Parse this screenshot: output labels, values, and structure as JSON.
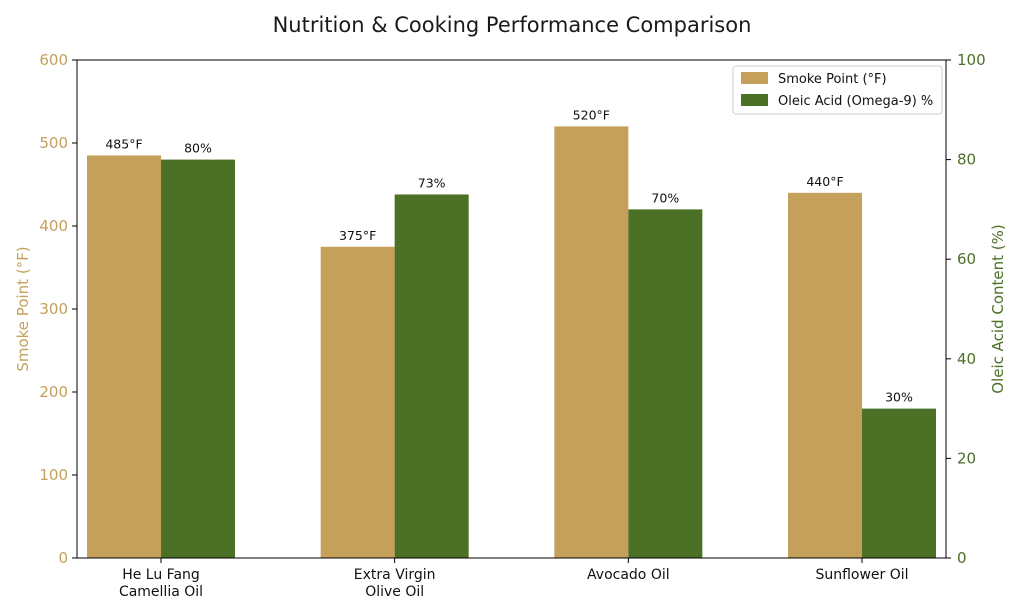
{
  "chart_data": {
    "type": "bar",
    "title": "Nutrition & Cooking Performance Comparison",
    "categories": [
      "He Lu Fang\nCamellia Oil",
      "Extra Virgin\nOlive Oil",
      "Avocado Oil",
      "Sunflower Oil"
    ],
    "series": [
      {
        "name": "Smoke Point (°F)",
        "values": [
          485,
          375,
          520,
          440
        ],
        "labels": [
          "485°F",
          "375°F",
          "520°F",
          "440°F"
        ],
        "axis": "left",
        "color": "#c5a05a"
      },
      {
        "name": "Oleic Acid (Omega-9) %",
        "values": [
          80,
          73,
          70,
          30
        ],
        "labels": [
          "80%",
          "73%",
          "70%",
          "30%"
        ],
        "axis": "right",
        "color": "#4b7026"
      }
    ],
    "y_left": {
      "label": "Smoke Point (°F)",
      "lim": [
        0,
        600
      ],
      "ticks": [
        0,
        100,
        200,
        300,
        400,
        500,
        600
      ],
      "color": "#c5a05a"
    },
    "y_right": {
      "label": "Oleic Acid Content (%)",
      "lim": [
        0,
        100
      ],
      "ticks": [
        0,
        20,
        40,
        60,
        80,
        100
      ],
      "color": "#4b7026"
    },
    "grid": false,
    "legend": "top-right"
  }
}
